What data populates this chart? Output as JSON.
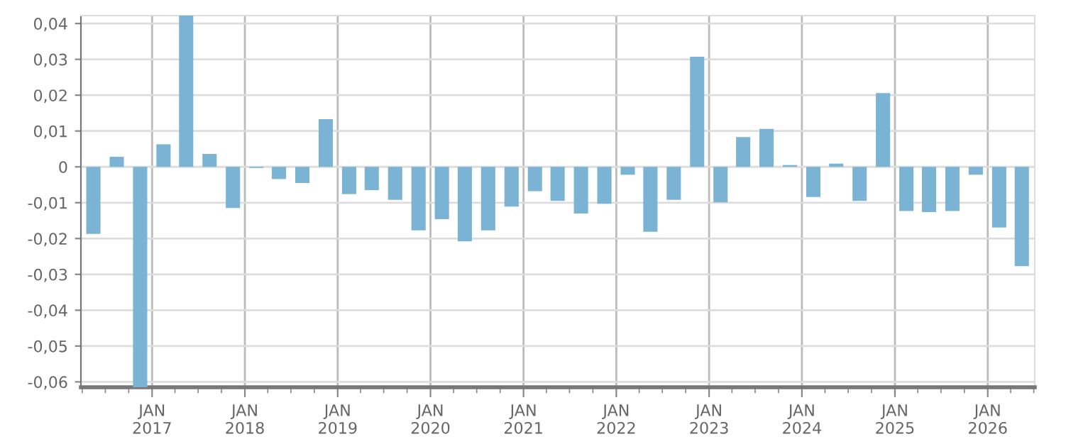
{
  "chart_data": {
    "type": "bar",
    "x": [
      "2016-05-15",
      "2016-08-15",
      "2016-11-15",
      "2017-02-15",
      "2017-05-15",
      "2017-08-15",
      "2017-11-15",
      "2018-02-15",
      "2018-05-15",
      "2018-08-15",
      "2018-11-15",
      "2019-02-15",
      "2019-05-15",
      "2019-08-15",
      "2019-11-15",
      "2020-02-15",
      "2020-05-15",
      "2020-08-15",
      "2020-11-15",
      "2021-02-15",
      "2021-05-15",
      "2021-08-15",
      "2021-11-15",
      "2022-02-15",
      "2022-05-15",
      "2022-08-15",
      "2022-11-15",
      "2023-02-15",
      "2023-05-15",
      "2023-08-15",
      "2023-11-15",
      "2024-02-15",
      "2024-05-15",
      "2024-08-15",
      "2024-11-15",
      "2025-02-15",
      "2025-05-15",
      "2025-08-15",
      "2025-11-15",
      "2026-02-15",
      "2026-05-15"
    ],
    "values": [
      -0.0187,
      0.0028,
      -0.0615,
      0.0063,
      0.0422,
      0.0036,
      -0.0115,
      -0.0003,
      -0.0034,
      -0.0045,
      0.0133,
      -0.0076,
      -0.0065,
      -0.0092,
      -0.0177,
      -0.0146,
      -0.0208,
      -0.0177,
      -0.0111,
      -0.0068,
      -0.0095,
      -0.013,
      -0.0103,
      -0.0022,
      -0.0181,
      -0.0092,
      0.0307,
      -0.0099,
      0.0083,
      0.0106,
      0.0005,
      -0.0084,
      0.0009,
      -0.0095,
      0.0206,
      -0.0123,
      -0.0126,
      -0.0123,
      -0.0022,
      -0.0169,
      -0.0277
    ],
    "color": "#7ab3d4",
    "xlim": [
      "2016-03-27",
      "2026-07-05"
    ],
    "xticks": [
      {
        "value": "2017-01-01",
        "label": "JAN\n2017"
      },
      {
        "value": "2018-01-01",
        "label": "JAN\n2018"
      },
      {
        "value": "2019-01-01",
        "label": "JAN\n2019"
      },
      {
        "value": "2020-01-01",
        "label": "JAN\n2020"
      },
      {
        "value": "2021-01-01",
        "label": "JAN\n2021"
      },
      {
        "value": "2022-01-01",
        "label": "JAN\n2022"
      },
      {
        "value": "2023-01-01",
        "label": "JAN\n2023"
      },
      {
        "value": "2024-01-01",
        "label": "JAN\n2024"
      },
      {
        "value": "2025-01-01",
        "label": "JAN\n2025"
      },
      {
        "value": "2026-01-01",
        "label": "JAN\n2026"
      }
    ],
    "ylim": [
      -0.0615,
      0.0422
    ],
    "yticks": [
      {
        "value": -0.06,
        "label": "-0,06"
      },
      {
        "value": -0.05,
        "label": "-0,05"
      },
      {
        "value": -0.04,
        "label": "-0,04"
      },
      {
        "value": -0.03,
        "label": "-0,03"
      },
      {
        "value": -0.02,
        "label": "-0,02"
      },
      {
        "value": -0.01,
        "label": "-0,01"
      },
      0,
      {
        "value": 0.01,
        "label": "0,01"
      },
      {
        "value": 0.02,
        "label": "0,02"
      },
      {
        "value": 0.03,
        "label": "0,03"
      },
      {
        "value": 0.04,
        "label": "0,04"
      }
    ],
    "grid": true,
    "legend": false
  }
}
